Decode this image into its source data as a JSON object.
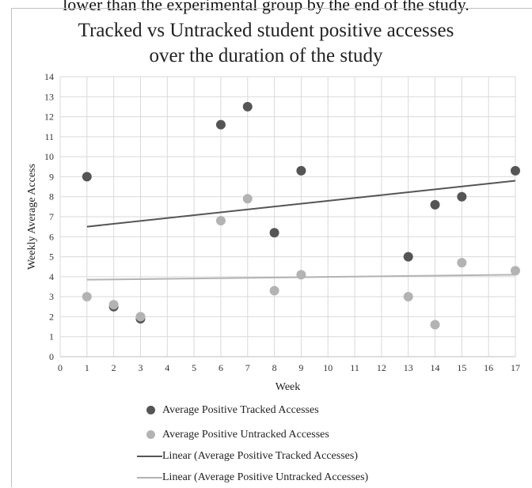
{
  "page": {
    "caption_fragment": "lower than the experimental group by the end of the study."
  },
  "colors": {
    "tracked": "#555555",
    "untracked": "#b3b3b3",
    "grid": "#d9d9d9",
    "axis": "#bfbfbf"
  },
  "chart_data": {
    "type": "scatter",
    "title": "Tracked vs Untracked student positive accesses over the duration of the study",
    "title_lines": [
      "Tracked vs Untracked student positive accesses",
      "over the duration of the study"
    ],
    "xlabel": "Week",
    "ylabel": "Weekly Average Access",
    "xlim": [
      0,
      17
    ],
    "ylim": [
      0,
      14
    ],
    "x_ticks": [
      "0",
      "1",
      "2",
      "3",
      "4",
      "5",
      "6",
      "7",
      "8",
      "9",
      "10",
      "11",
      "12",
      "13",
      "14",
      "15",
      "16",
      "17"
    ],
    "y_ticks": [
      "0",
      "1",
      "2",
      "3",
      "4",
      "5",
      "6",
      "7",
      "8",
      "9",
      "10",
      "11",
      "12",
      "13",
      "14"
    ],
    "grid": true,
    "legend_position": "bottom",
    "series": [
      {
        "name": "Average Positive Tracked Accesses",
        "kind": "points",
        "color": "#555555",
        "points": [
          [
            1,
            9.0
          ],
          [
            2,
            2.5
          ],
          [
            3,
            1.9
          ],
          [
            6,
            11.6
          ],
          [
            7,
            12.5
          ],
          [
            8,
            6.2
          ],
          [
            9,
            9.3
          ],
          [
            13,
            5.0
          ],
          [
            14,
            7.6
          ],
          [
            15,
            8.0
          ],
          [
            17,
            9.3
          ]
        ]
      },
      {
        "name": "Average Positive Untracked Accesses",
        "kind": "points",
        "color": "#b3b3b3",
        "points": [
          [
            1,
            3.0
          ],
          [
            2,
            2.6
          ],
          [
            3,
            2.0
          ],
          [
            6,
            6.8
          ],
          [
            7,
            7.9
          ],
          [
            8,
            3.3
          ],
          [
            9,
            4.1
          ],
          [
            13,
            3.0
          ],
          [
            14,
            1.6
          ],
          [
            15,
            4.7
          ],
          [
            17,
            4.3
          ]
        ]
      },
      {
        "name": "Linear (Average Positive Tracked Accesses)",
        "kind": "trendline",
        "color": "#555555",
        "points": [
          [
            1,
            6.5
          ],
          [
            17,
            8.8
          ]
        ]
      },
      {
        "name": "Linear (Average Positive Untracked Accesses)",
        "kind": "trendline",
        "color": "#b3b3b3",
        "points": [
          [
            1,
            3.85
          ],
          [
            17,
            4.1
          ]
        ]
      }
    ]
  }
}
